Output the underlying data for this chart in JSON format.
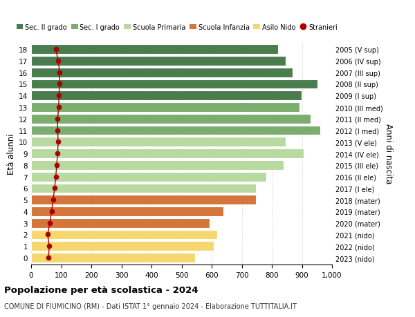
{
  "ages": [
    18,
    17,
    16,
    15,
    14,
    13,
    12,
    11,
    10,
    9,
    8,
    7,
    6,
    5,
    4,
    3,
    2,
    1,
    0
  ],
  "anni_nascita": [
    "2005 (V sup)",
    "2006 (IV sup)",
    "2007 (III sup)",
    "2008 (II sup)",
    "2009 (I sup)",
    "2010 (III med)",
    "2011 (II med)",
    "2012 (I med)",
    "2013 (V ele)",
    "2014 (IV ele)",
    "2015 (III ele)",
    "2016 (II ele)",
    "2017 (I ele)",
    "2018 (mater)",
    "2019 (mater)",
    "2020 (mater)",
    "2021 (nido)",
    "2022 (nido)",
    "2023 (nido)"
  ],
  "bar_values": [
    820,
    845,
    868,
    952,
    898,
    893,
    928,
    960,
    845,
    905,
    838,
    782,
    748,
    748,
    638,
    592,
    618,
    608,
    545
  ],
  "bar_colors": [
    "#4a7c4e",
    "#4a7c4e",
    "#4a7c4e",
    "#4a7c4e",
    "#4a7c4e",
    "#7aad6e",
    "#7aad6e",
    "#7aad6e",
    "#b8d9a0",
    "#b8d9a0",
    "#b8d9a0",
    "#b8d9a0",
    "#b8d9a0",
    "#d4763b",
    "#d4763b",
    "#d4763b",
    "#f5d76e",
    "#f5d76e",
    "#f5d76e"
  ],
  "stranieri_values": [
    82,
    90,
    95,
    95,
    92,
    92,
    88,
    88,
    90,
    88,
    85,
    82,
    78,
    73,
    68,
    62,
    55,
    60,
    58
  ],
  "stranieri_color": "#aa0000",
  "title_bold": "Popolazione per età scolastica - 2024",
  "subtitle": "COMUNE DI FIUMICINO (RM) - Dati ISTAT 1° gennaio 2024 - Elaborazione TUTTITALIA.IT",
  "ylabel": "Età alunni",
  "ylabel_right": "Anni di nascita",
  "xlim": [
    0,
    1000
  ],
  "xticks": [
    0,
    100,
    200,
    300,
    400,
    500,
    600,
    700,
    800,
    900,
    1000
  ],
  "xtick_labels": [
    "0",
    "100",
    "200",
    "300",
    "400",
    "500",
    "600",
    "700",
    "800",
    "900",
    "1,000"
  ],
  "legend_labels": [
    "Sec. II grado",
    "Sec. I grado",
    "Scuola Primaria",
    "Scuola Infanzia",
    "Asilo Nido",
    "Stranieri"
  ],
  "legend_colors": [
    "#4a7c4e",
    "#7aad6e",
    "#b8d9a0",
    "#d4763b",
    "#f5d76e",
    "#aa0000"
  ],
  "legend_markers": [
    "s",
    "s",
    "s",
    "s",
    "s",
    "o"
  ],
  "bg_color": "#ffffff",
  "grid_color": "#dddddd",
  "bar_height": 0.82
}
